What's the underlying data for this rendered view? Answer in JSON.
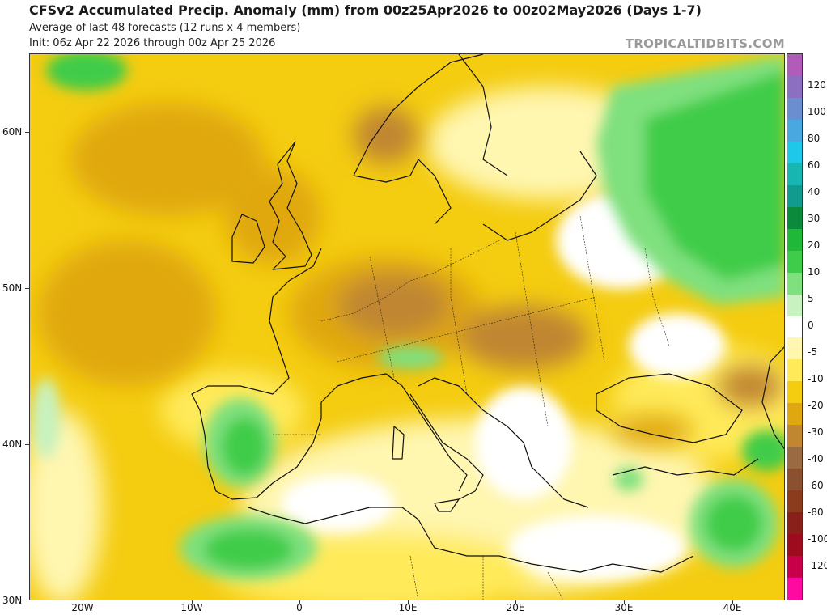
{
  "header": {
    "title": "CFSv2 Accumulated Precip. Anomaly (mm) from 00z25Apr2026 to 00z02May2026 (Days 1-7)",
    "subtitle_1": "Average of last 48 forecasts (12 runs x 4 members)",
    "subtitle_2": "Init: 06z Apr 22 2026 through 00z Apr 25 2026",
    "brand": "TROPICALTIDBITS.COM"
  },
  "axes": {
    "lat_labels": [
      "60N",
      "50N",
      "40N",
      "30N"
    ],
    "lon_labels": [
      "20W",
      "10W",
      "0",
      "10E",
      "20E",
      "30E",
      "40E"
    ]
  },
  "colorbar": {
    "unit": "mm",
    "labels": [
      "120",
      "100",
      "80",
      "60",
      "40",
      "30",
      "20",
      "10",
      "5",
      "0",
      "-5",
      "-10",
      "-20",
      "-30",
      "-40",
      "-60",
      "-80",
      "-100",
      "-120"
    ],
    "colors": [
      "#b05cb8",
      "#8c6fc0",
      "#6a8ed0",
      "#4aa8e0",
      "#1ec8e8",
      "#17b6b0",
      "#119a8e",
      "#0c8a3c",
      "#1fb838",
      "#3fcc4a",
      "#7fe07e",
      "#c8f2c0",
      "#ffffff",
      "#fff6b0",
      "#ffea5a",
      "#f4cc10",
      "#e0a810",
      "#c08630",
      "#9a6a42",
      "#8a5030",
      "#8a3c1c",
      "#8a201a",
      "#9e0b1e",
      "#c8004a",
      "#ff0aa0"
    ]
  },
  "map": {
    "projection": "equirectangular",
    "extent": {
      "lon_min": -25,
      "lon_max": 45,
      "lat_min": 30,
      "lat_max": 65
    },
    "regions": [
      {
        "name": "Atlantic dry anomaly",
        "lon": -17,
        "lat": 52,
        "value": -20
      },
      {
        "name": "British Isles dry",
        "lon": -3,
        "lat": 54,
        "value": -20
      },
      {
        "name": "Central Europe dry",
        "lon": 12,
        "lat": 49,
        "value": -20
      },
      {
        "name": "Pannonian dry",
        "lon": 20,
        "lat": 47,
        "value": -20
      },
      {
        "name": "Western Russia wet",
        "lon": 40,
        "lat": 56,
        "value": 20
      },
      {
        "name": "Iberia wet",
        "lon": -5,
        "lat": 40,
        "value": 20
      },
      {
        "name": "Atlas wet",
        "lon": -4,
        "lat": 33,
        "value": 20
      },
      {
        "name": "Syria/Iraq wet",
        "lon": 41,
        "lat": 34,
        "value": 20
      },
      {
        "name": "Po Valley wet",
        "lon": 9,
        "lat": 45.5,
        "value": 10
      },
      {
        "name": "NW Africa coast wet",
        "lon": -23,
        "lat": 41,
        "value": 10
      }
    ]
  }
}
